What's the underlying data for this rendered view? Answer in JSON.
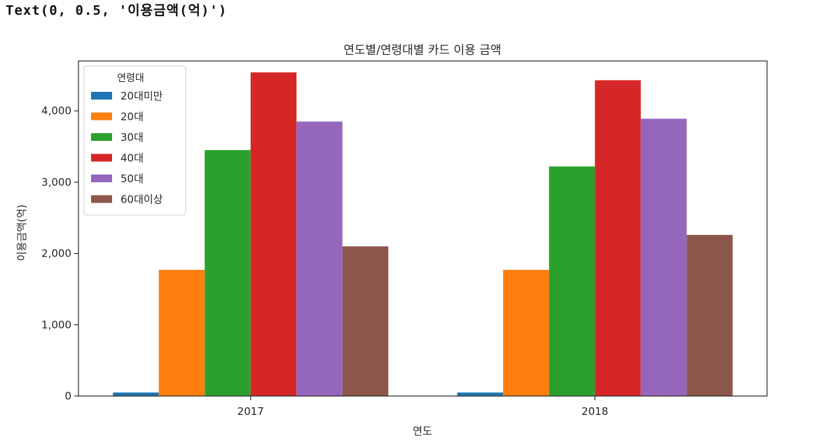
{
  "output": {
    "text": "Text(0, 0.5, '이용금액(억)')"
  },
  "chart_data": {
    "type": "bar",
    "title": "연도별/연령대별 카드 이용 금액",
    "xlabel": "연도",
    "ylabel": "이용금액(억)",
    "categories": [
      "2017",
      "2018"
    ],
    "ylim": [
      0,
      4700
    ],
    "yticks": [
      0,
      1000,
      2000,
      3000,
      4000
    ],
    "ytick_labels": [
      "0",
      "1,000",
      "2,000",
      "3,000",
      "4,000"
    ],
    "grid": false,
    "legend": {
      "title": "연령대",
      "placement": "upper-left"
    },
    "series": [
      {
        "name": "20대미만",
        "color": "#1f77b4",
        "values": [
          50,
          50
        ]
      },
      {
        "name": "20대",
        "color": "#ff7f0e",
        "values": [
          1770,
          1770
        ]
      },
      {
        "name": "30대",
        "color": "#2ca02c",
        "values": [
          3450,
          3220
        ]
      },
      {
        "name": "40대",
        "color": "#d62728",
        "values": [
          4540,
          4430
        ]
      },
      {
        "name": "50대",
        "color": "#9467bd",
        "values": [
          3850,
          3890
        ]
      },
      {
        "name": "60대이상",
        "color": "#8c564b",
        "values": [
          2100,
          2260
        ]
      }
    ]
  }
}
